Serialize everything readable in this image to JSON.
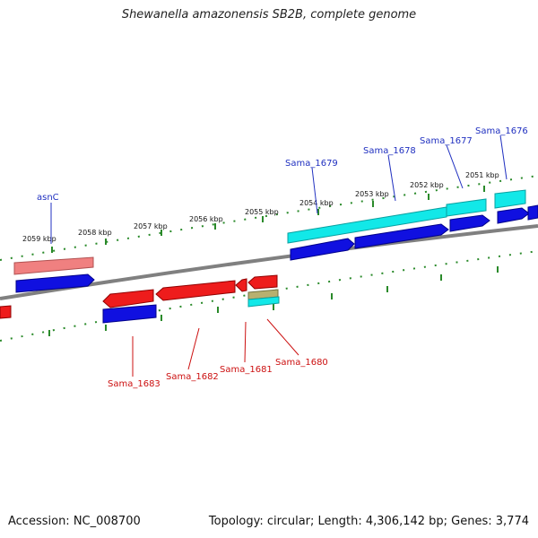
{
  "title": "Shewanella amazonensis SB2B, complete genome",
  "footer": {
    "accession": "Accession: NC_008700",
    "summary": "Topology: circular; Length: 4,306,142 bp; Genes: 3,774"
  },
  "colors": {
    "backbone": "#808080",
    "tick": "#2a8a2a",
    "gene_blue": "#1010e0",
    "gene_red": "#ee1c1c",
    "gene_cyan": "#12e8e8",
    "gene_salmon": "#f08080",
    "gene_olive": "#b8b070",
    "label_blue": "#2030c0",
    "label_red": "#cc1010"
  },
  "scale_labels": [
    "2059 kbp",
    "2058 kbp",
    "2057 kbp",
    "2056 kbp",
    "2055 kbp",
    "2054 kbp",
    "2053 kbp",
    "2052 kbp",
    "2051 kbp"
  ],
  "gene_labels_top": [
    "asnC",
    "Sama_1679",
    "Sama_1678",
    "Sama_1677",
    "Sama_1676"
  ],
  "gene_labels_bottom": [
    "Sama_1683",
    "Sama_1682",
    "Sama_1681",
    "Sama_1680"
  ]
}
